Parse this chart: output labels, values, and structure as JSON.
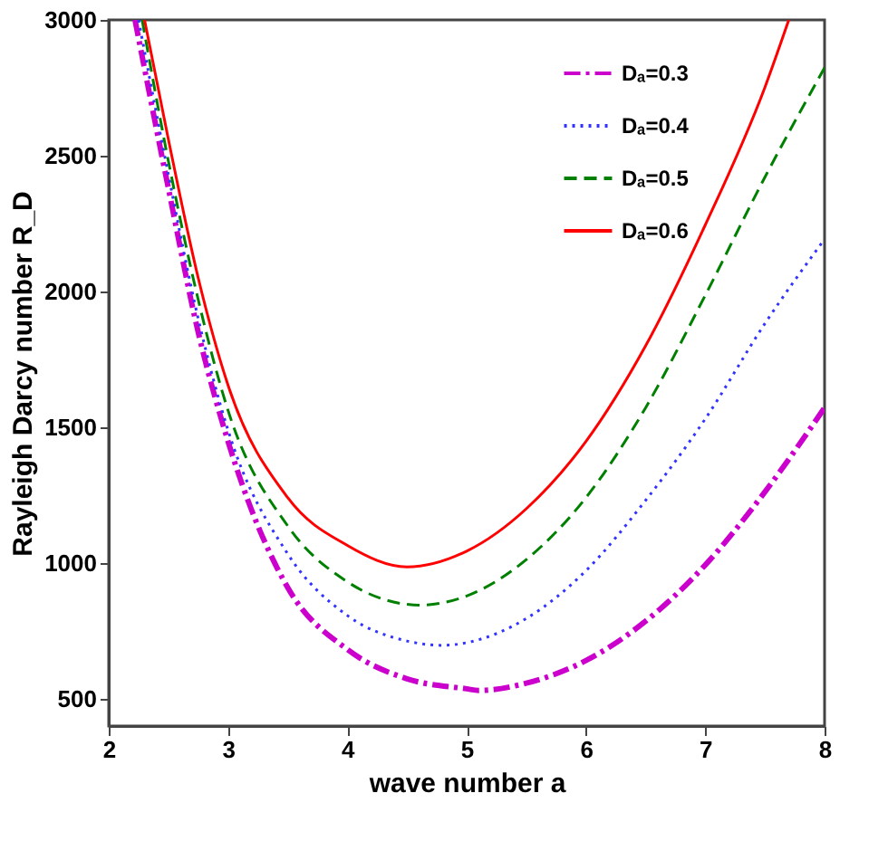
{
  "chart_data": {
    "type": "line",
    "xlabel": "wave number a",
    "ylabel": "Rayleigh Darcy number R_D",
    "xlim": [
      2,
      8
    ],
    "ylim": [
      400,
      3000
    ],
    "xticks": [
      2,
      3,
      4,
      5,
      6,
      7,
      8
    ],
    "yticks": [
      500,
      1000,
      1500,
      2000,
      2500,
      3000
    ],
    "grid": false,
    "legend": "top right",
    "series": [
      {
        "name": "Dₐ=0.3",
        "color": "#cc00cc",
        "line_style": "dashdot",
        "x": [
          2.22,
          2.5,
          2.75,
          3,
          3.5,
          4,
          4.5,
          5,
          5.1,
          5.5,
          6,
          6.5,
          7,
          7.5,
          8
        ],
        "values": [
          3000,
          2380,
          1850,
          1448,
          910,
          682,
          574,
          537,
          531,
          558,
          641,
          786,
          993,
          1262,
          1572
        ]
      },
      {
        "name": "Dₐ=0.4",
        "color": "#3333ff",
        "line_style": "dotted",
        "x": [
          2.25,
          2.5,
          2.75,
          3,
          3.5,
          4,
          4.5,
          4.8,
          5,
          5.5,
          6,
          6.5,
          7,
          7.5,
          8
        ],
        "values": [
          3000,
          2430,
          1900,
          1489,
          1034,
          807,
          713,
          697,
          707,
          796,
          972,
          1231,
          1531,
          1882,
          2193
        ]
      },
      {
        "name": "Dₐ=0.5",
        "color": "#008000",
        "line_style": "dashed",
        "x": [
          2.28,
          2.5,
          2.75,
          3,
          3.5,
          4,
          4.5,
          4.6,
          5,
          5.5,
          6,
          6.5,
          7,
          7.5,
          8
        ],
        "values": [
          3000,
          2480,
          1970,
          1562,
          1137,
          931,
          848,
          845,
          879,
          1013,
          1241,
          1572,
          1986,
          2421,
          2824
        ]
      },
      {
        "name": "Dₐ=0.6",
        "color": "#ff0000",
        "line_style": "solid",
        "x": [
          2.3,
          2.5,
          2.75,
          3,
          3.5,
          4,
          4.5,
          5,
          5.5,
          6,
          6.5,
          7,
          7.5,
          7.7
        ],
        "values": [
          3000,
          2560,
          2050,
          1655,
          1241,
          1065,
          986,
          1044,
          1200,
          1448,
          1800,
          2245,
          2752,
          3000
        ]
      }
    ]
  }
}
